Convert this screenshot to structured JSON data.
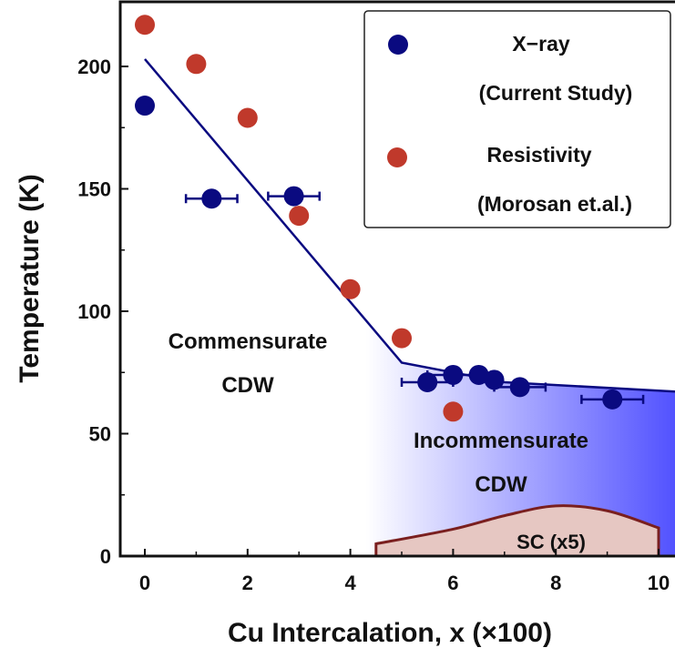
{
  "chart_data": {
    "type": "scatter",
    "xlabel": "Cu Intercalation, x (×100)",
    "ylabel": "Temperature (K)",
    "xlim": [
      -0.5,
      10.5
    ],
    "ylim": [
      0,
      225
    ],
    "x_ticks": [
      "0",
      "2",
      "4",
      "6",
      "8",
      "10"
    ],
    "y_ticks": [
      "0",
      "50",
      "100",
      "150",
      "200"
    ],
    "grid": false,
    "legend_position": "top-right",
    "legend": [
      {
        "line1": "X−ray",
        "line2": "(Current Study)",
        "color": "#0a0a80"
      },
      {
        "line1": "Resistivity",
        "line2": "(Morosan et.al.)",
        "color": "#c0392b"
      }
    ],
    "series": [
      {
        "name": "X−ray (Current Study)",
        "color": "#0a0a80",
        "points": [
          {
            "x": 0,
            "y": 184
          },
          {
            "x": 1.3,
            "y": 146,
            "xerr": 0.5
          },
          {
            "x": 2.9,
            "y": 147,
            "xerr": 0.5
          },
          {
            "x": 5.5,
            "y": 71,
            "xerr": 0.5
          },
          {
            "x": 6.0,
            "y": 74,
            "xerr": 0.5
          },
          {
            "x": 6.5,
            "y": 74
          },
          {
            "x": 6.8,
            "y": 72
          },
          {
            "x": 7.3,
            "y": 69,
            "xerr": 0.5
          },
          {
            "x": 9.1,
            "y": 64,
            "xerr": 0.6
          }
        ]
      },
      {
        "name": "Resistivity (Morosan et.al.)",
        "color": "#c0392b",
        "points": [
          {
            "x": 0,
            "y": 217
          },
          {
            "x": 1,
            "y": 201
          },
          {
            "x": 2,
            "y": 179
          },
          {
            "x": 3,
            "y": 139
          },
          {
            "x": 4,
            "y": 109
          },
          {
            "x": 5,
            "y": 89
          },
          {
            "x": 6,
            "y": 59
          }
        ]
      }
    ],
    "boundary_line": {
      "color": "#0a0a80",
      "points": [
        [
          0,
          203
        ],
        [
          5,
          79
        ],
        [
          7,
          71
        ],
        [
          10.5,
          67
        ]
      ]
    },
    "sc_dome": {
      "label": "SC (x5)",
      "points": [
        [
          4.5,
          5
        ],
        [
          6,
          11
        ],
        [
          7,
          16.5
        ],
        [
          8,
          20.5
        ],
        [
          9,
          18.5
        ],
        [
          10,
          11.5
        ]
      ]
    },
    "regions": [
      {
        "line1": "Commensurate",
        "line2": "CDW"
      },
      {
        "line1": "Incommensurate",
        "line2": "CDW"
      }
    ]
  }
}
